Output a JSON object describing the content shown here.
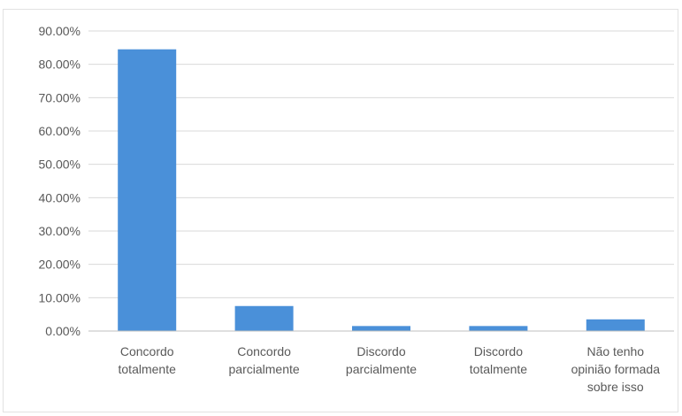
{
  "chart_data": {
    "type": "bar",
    "categories": [
      [
        "Concordo",
        "totalmente"
      ],
      [
        "Concordo",
        "parcialmente"
      ],
      [
        "Discordo",
        "parcialmente"
      ],
      [
        "Discordo",
        "totalmente"
      ],
      [
        "Não tenho",
        "opinião formada",
        "sobre isso"
      ]
    ],
    "values": [
      84.5,
      7.5,
      1.5,
      1.5,
      3.5
    ],
    "unit": "%",
    "ylim": [
      0,
      90
    ],
    "ytick_step": 10,
    "ytick_labels": [
      "0.00%",
      "10.00%",
      "20.00%",
      "30.00%",
      "40.00%",
      "50.00%",
      "60.00%",
      "70.00%",
      "80.00%",
      "90.00%"
    ],
    "grid": true,
    "legend": false,
    "bar_color": "#4a90d9"
  }
}
